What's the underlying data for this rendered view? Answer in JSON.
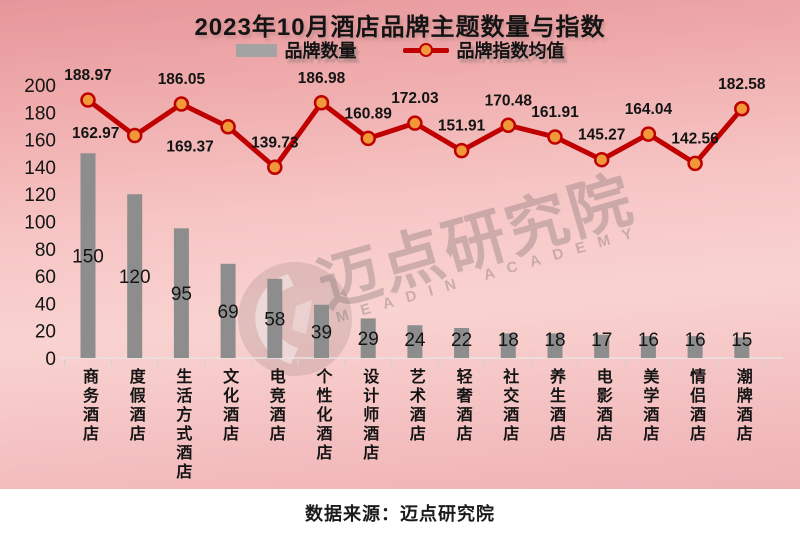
{
  "title": "2023年10月酒店品牌主题数量与指数",
  "legend": {
    "bars": "品牌数量",
    "line": "品牌指数均值"
  },
  "source": "数据来源：迈点研究院",
  "watermark": {
    "cjk": "迈点研究院",
    "latin": "MEADIN ACADEMY",
    "logo": "meadin-circle-logo"
  },
  "colors": {
    "bar": "#8d8d8d",
    "legend_swatch": "#a3a3a3",
    "line": "#c00000",
    "marker_fill": "#f0983a",
    "marker_stroke": "#bf0000",
    "axis": "#e9e2e2",
    "tick": "#d8cfcf",
    "text": "#141414",
    "background_top": "#e6969a",
    "background_mid": "#f9d3d1",
    "footer_bg": "#ffffff"
  },
  "chart_data": {
    "type": "bar+line",
    "title": "2023年10月酒店品牌主题数量与指数",
    "categories": [
      "商务酒店",
      "度假酒店",
      "生活方式酒店",
      "文化酒店",
      "电竞酒店",
      "个性化酒店",
      "设计师酒店",
      "艺术酒店",
      "轻奢酒店",
      "社交酒店",
      "养生酒店",
      "电影酒店",
      "美学酒店",
      "情侣酒店",
      "潮牌酒店"
    ],
    "series": [
      {
        "name": "品牌数量",
        "type": "bar",
        "values": [
          150,
          120,
          95,
          69,
          58,
          39,
          29,
          24,
          22,
          18,
          18,
          17,
          16,
          16,
          15
        ]
      },
      {
        "name": "品牌指数均值",
        "type": "line",
        "values": [
          188.97,
          162.97,
          186.05,
          169.37,
          139.73,
          186.98,
          160.89,
          172.03,
          151.91,
          170.48,
          161.91,
          145.27,
          164.04,
          142.56,
          182.58
        ]
      }
    ],
    "ylim": [
      0,
      200
    ],
    "yticks": [
      0,
      20,
      40,
      60,
      80,
      100,
      120,
      140,
      160,
      180,
      200
    ],
    "grid": false,
    "legend_position": "top",
    "data_labels": true
  }
}
